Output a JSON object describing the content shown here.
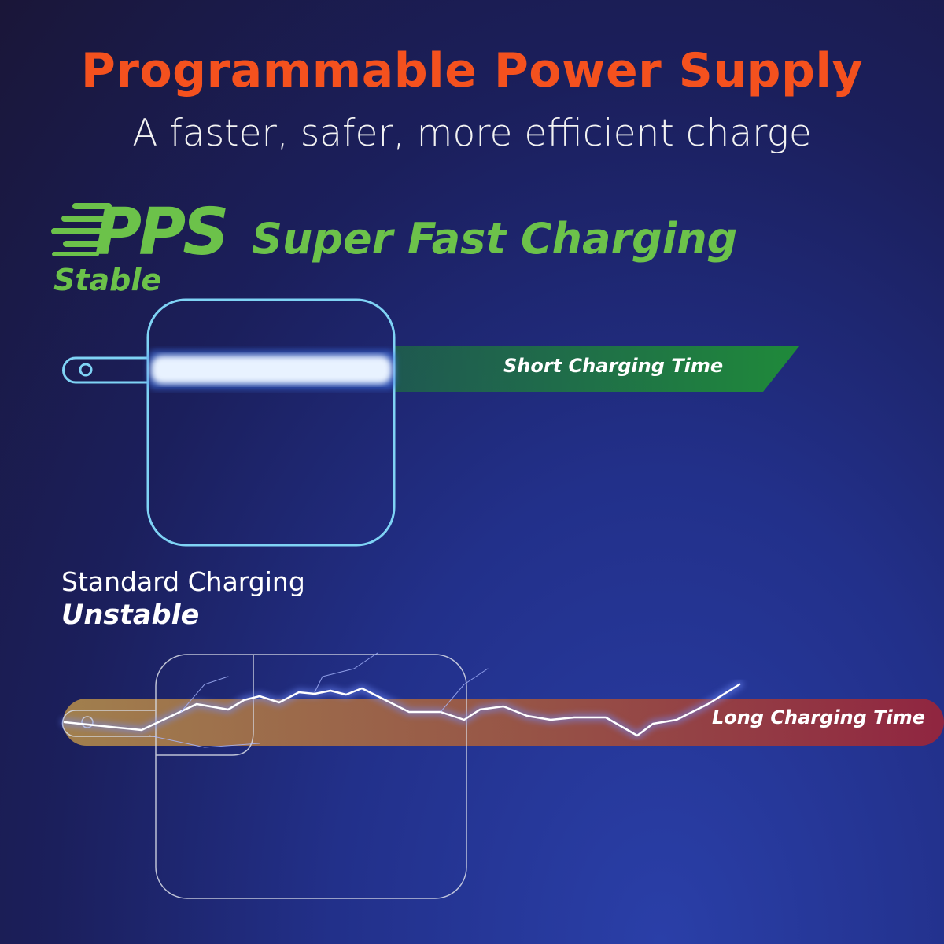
{
  "header": {
    "title": "Programmable Power Supply",
    "subtitle": "A faster, safer, more efficient charge"
  },
  "pps_section": {
    "logo_text": "PPS",
    "heading": "Super Fast Charging",
    "label": "Stable",
    "bar_label": "Short Charging Time",
    "bar_color": "#1f7a3a",
    "text_color": "#6cc24a"
  },
  "standard_section": {
    "heading": "Standard Charging",
    "label": "Unstable",
    "bar_label": "Long Charging Time",
    "bar_colors": [
      "#a6804a",
      "#9e2a3c"
    ]
  },
  "colors": {
    "title": "#f4511e",
    "charger_outline_pps": "#7fd3f5",
    "charger_outline_standard": "#d9dde8"
  }
}
